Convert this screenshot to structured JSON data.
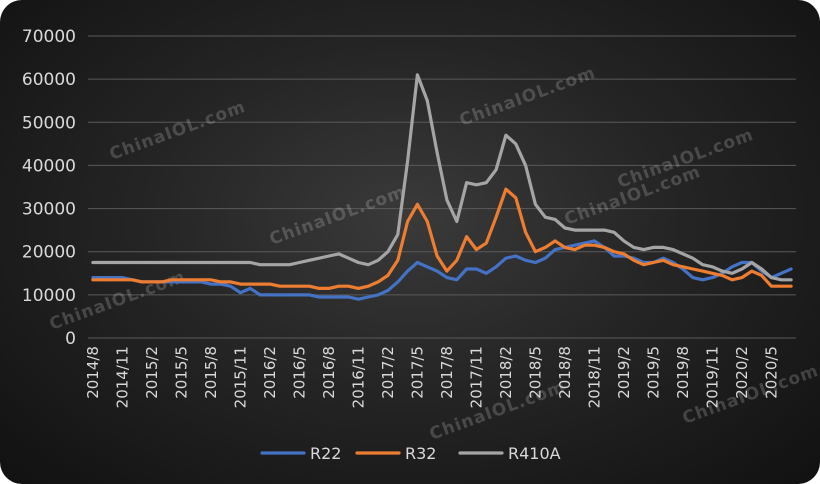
{
  "chart_data": {
    "type": "line",
    "title": "",
    "xlabel": "",
    "ylabel": "",
    "ylim": [
      0,
      70000
    ],
    "yticks": [
      0,
      10000,
      20000,
      30000,
      40000,
      50000,
      60000,
      70000
    ],
    "grid": "horizontal",
    "legend_position": "bottom",
    "watermark": "ChinaIOL.com",
    "x": [
      "2014/8",
      "2014/9",
      "2014/10",
      "2014/11",
      "2014/12",
      "2015/1",
      "2015/2",
      "2015/3",
      "2015/4",
      "2015/5",
      "2015/6",
      "2015/7",
      "2015/8",
      "2015/9",
      "2015/10",
      "2015/11",
      "2015/12",
      "2016/1",
      "2016/2",
      "2016/3",
      "2016/4",
      "2016/5",
      "2016/6",
      "2016/7",
      "2016/8",
      "2016/9",
      "2016/10",
      "2016/11",
      "2016/12",
      "2017/1",
      "2017/2",
      "2017/3",
      "2017/4",
      "2017/5",
      "2017/6",
      "2017/7",
      "2017/8",
      "2017/9",
      "2017/10",
      "2017/11",
      "2017/12",
      "2018/1",
      "2018/2",
      "2018/3",
      "2018/4",
      "2018/5",
      "2018/6",
      "2018/7",
      "2018/8",
      "2018/9",
      "2018/10",
      "2018/11",
      "2018/12",
      "2019/1",
      "2019/2",
      "2019/3",
      "2019/4",
      "2019/5",
      "2019/6",
      "2019/7",
      "2019/8",
      "2019/9",
      "2019/10",
      "2019/11",
      "2019/12",
      "2020/1",
      "2020/2",
      "2020/3",
      "2020/4",
      "2020/5",
      "2020/6",
      "2020/7"
    ],
    "x_tick_labels": [
      "2014/8",
      "2014/11",
      "2015/2",
      "2015/5",
      "2015/8",
      "2015/11",
      "2016/2",
      "2016/5",
      "2016/8",
      "2016/11",
      "2017/2",
      "2017/5",
      "2017/8",
      "2017/11",
      "2018/2",
      "2018/5",
      "2018/8",
      "2018/11",
      "2019/2",
      "2019/5",
      "2019/8",
      "2019/11",
      "2020/2",
      "2020/5"
    ],
    "series": [
      {
        "name": "R22",
        "color": "#4472c4",
        "values": [
          14000,
          14000,
          14000,
          14000,
          13500,
          13000,
          13000,
          13000,
          13000,
          13000,
          13000,
          13000,
          12500,
          12500,
          12000,
          10500,
          11500,
          10000,
          10000,
          10000,
          10000,
          10000,
          10000,
          9500,
          9500,
          9500,
          9500,
          9000,
          9500,
          10000,
          11000,
          13000,
          15500,
          17500,
          16500,
          15500,
          14000,
          13500,
          16000,
          16000,
          15000,
          16500,
          18500,
          19000,
          18000,
          17500,
          18500,
          20500,
          21000,
          21500,
          22000,
          22500,
          21000,
          19000,
          19000,
          18500,
          17500,
          17500,
          18500,
          17500,
          16000,
          14000,
          13500,
          14000,
          15000,
          16500,
          17500,
          17500,
          15500,
          14000,
          15000,
          16000
        ]
      },
      {
        "name": "R32",
        "color": "#ed7d31",
        "values": [
          13500,
          13500,
          13500,
          13500,
          13500,
          13000,
          13000,
          13000,
          13500,
          13500,
          13500,
          13500,
          13500,
          13000,
          13000,
          12500,
          12500,
          12500,
          12500,
          12000,
          12000,
          12000,
          12000,
          11500,
          11500,
          12000,
          12000,
          11500,
          12000,
          13000,
          14500,
          18000,
          27000,
          31000,
          27000,
          19000,
          15500,
          18000,
          23500,
          20500,
          22000,
          28000,
          34500,
          32500,
          24500,
          20000,
          21000,
          22500,
          21000,
          20500,
          21500,
          21500,
          21000,
          20000,
          19500,
          18000,
          17000,
          17500,
          18000,
          17000,
          16500,
          16000,
          15500,
          15000,
          14500,
          13500,
          14000,
          15500,
          14500,
          12000,
          12000,
          12000
        ]
      },
      {
        "name": "R410A",
        "color": "#a5a5a5",
        "values": [
          17500,
          17500,
          17500,
          17500,
          17500,
          17500,
          17500,
          17500,
          17500,
          17500,
          17500,
          17500,
          17500,
          17500,
          17500,
          17500,
          17500,
          17000,
          17000,
          17000,
          17000,
          17500,
          18000,
          18500,
          19000,
          19500,
          18500,
          17500,
          17000,
          18000,
          20000,
          24000,
          41000,
          61000,
          55000,
          43000,
          32000,
          27000,
          36000,
          35500,
          36000,
          39000,
          47000,
          45000,
          40000,
          31000,
          28000,
          27500,
          25500,
          25000,
          25000,
          25000,
          25000,
          24500,
          22500,
          21000,
          20500,
          21000,
          21000,
          20500,
          19500,
          18500,
          17000,
          16500,
          15500,
          15000,
          16000,
          17500,
          16000,
          14000,
          13500,
          13500
        ]
      }
    ]
  }
}
